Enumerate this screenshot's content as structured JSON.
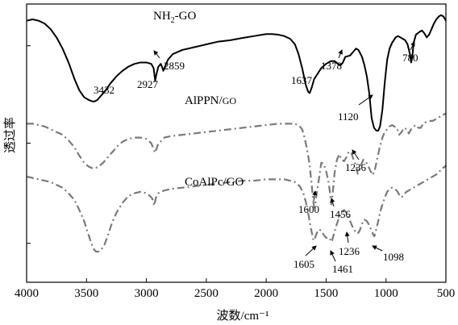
{
  "chart_data": {
    "type": "line",
    "xlabel": "波数/cm⁻¹",
    "ylabel": "透过率",
    "xlim": [
      4000,
      500
    ],
    "x_reversed": true,
    "x_ticks": [
      4000,
      3500,
      3000,
      2500,
      2000,
      1500,
      1000,
      500
    ],
    "grid": false,
    "series": [
      {
        "name": "NH₂-GO",
        "color": "#000000",
        "dash": "solid",
        "x": [
          4000,
          3950,
          3900,
          3850,
          3800,
          3750,
          3700,
          3650,
          3600,
          3560,
          3520,
          3480,
          3450,
          3432,
          3410,
          3380,
          3340,
          3300,
          3250,
          3200,
          3150,
          3100,
          3050,
          3000,
          2960,
          2940,
          2927,
          2915,
          2900,
          2880,
          2870,
          2859,
          2845,
          2820,
          2780,
          2700,
          2600,
          2500,
          2400,
          2300,
          2200,
          2100,
          2000,
          1950,
          1900,
          1850,
          1800,
          1760,
          1730,
          1700,
          1670,
          1650,
          1637,
          1620,
          1600,
          1570,
          1540,
          1500,
          1460,
          1430,
          1400,
          1378,
          1360,
          1340,
          1300,
          1270,
          1250,
          1230,
          1200,
          1180,
          1160,
          1140,
          1120,
          1100,
          1080,
          1065,
          1050,
          1030,
          1010,
          990,
          970,
          950,
          920,
          900,
          880,
          860,
          840,
          820,
          800,
          790,
          780,
          770,
          750,
          720,
          700,
          680,
          660,
          640,
          620,
          600,
          580,
          560,
          540,
          520,
          500
        ],
        "y": [
          94,
          94.5,
          94,
          93,
          91,
          88,
          84,
          79,
          73,
          69,
          66.5,
          65.5,
          65,
          65,
          65.5,
          67,
          69,
          71.5,
          74,
          76,
          77.5,
          78.5,
          79,
          79,
          78.5,
          77,
          72.5,
          75,
          77.5,
          78.5,
          77.5,
          76,
          77.5,
          80,
          82,
          83.5,
          84.5,
          85.5,
          86.5,
          87,
          87.8,
          88.5,
          89.2,
          89.2,
          89,
          88.5,
          87.5,
          85.5,
          82,
          77,
          71,
          68.5,
          68,
          70,
          73,
          75,
          77,
          78.5,
          79.5,
          79.5,
          78.5,
          78,
          79,
          81,
          81.5,
          83,
          84,
          83.5,
          81,
          78,
          74,
          68,
          59,
          55.5,
          54.5,
          54.5,
          56,
          62,
          72,
          80,
          84,
          86,
          88,
          88.5,
          88,
          87.5,
          87,
          85.5,
          82,
          79,
          81,
          86,
          89,
          90,
          90.5,
          89.5,
          88,
          89,
          91,
          93,
          94.5,
          95.5,
          96,
          95.5,
          94
        ]
      },
      {
        "name": "AlPPN/GO",
        "color": "#7a7a7a",
        "dash": "dashdot",
        "x": [
          4000,
          3950,
          3900,
          3850,
          3800,
          3750,
          3700,
          3650,
          3600,
          3560,
          3520,
          3480,
          3450,
          3430,
          3400,
          3360,
          3320,
          3280,
          3240,
          3200,
          3150,
          3100,
          3050,
          3000,
          2960,
          2940,
          2930,
          2915,
          2900,
          2870,
          2850,
          2800,
          2700,
          2600,
          2500,
          2400,
          2300,
          2200,
          2100,
          2000,
          1900,
          1850,
          1800,
          1780,
          1760,
          1740,
          1720,
          1700,
          1680,
          1660,
          1640,
          1620,
          1610,
          1600,
          1590,
          1575,
          1560,
          1540,
          1520,
          1500,
          1480,
          1470,
          1460,
          1456,
          1445,
          1430,
          1410,
          1390,
          1370,
          1350,
          1330,
          1310,
          1290,
          1270,
          1250,
          1236,
          1225,
          1210,
          1190,
          1170,
          1150,
          1130,
          1110,
          1090,
          1070,
          1050,
          1030,
          1010,
          990,
          970,
          950,
          930,
          910,
          890,
          870,
          850,
          830,
          810,
          790,
          770,
          750,
          730,
          710,
          690,
          670,
          650,
          630,
          610,
          590,
          570,
          550,
          530,
          510,
          500
        ],
        "y": [
          57,
          57,
          56.5,
          56,
          55,
          54,
          53,
          51,
          48.5,
          45.5,
          43,
          41.5,
          41,
          41,
          41.5,
          43,
          45,
          47,
          49,
          50.5,
          51.5,
          52,
          52,
          51.5,
          50,
          48,
          46.5,
          48,
          50,
          51,
          52,
          52.5,
          53,
          53.5,
          54,
          54.5,
          55,
          55.5,
          56,
          56.5,
          57,
          57,
          57,
          57,
          57,
          56.5,
          56,
          55,
          52,
          48,
          43,
          35,
          30,
          27,
          28.5,
          33,
          37,
          43,
          42.5,
          40,
          36,
          33,
          29,
          28,
          32,
          39,
          44,
          46,
          44,
          43.5,
          45,
          47,
          46.5,
          44,
          42,
          39,
          40.5,
          42,
          44,
          43.5,
          42,
          40,
          38.5,
          41,
          45,
          49,
          52,
          54,
          55,
          56,
          56.5,
          56,
          55.5,
          53,
          54,
          55.5,
          55,
          53.5,
          55,
          56,
          56.5,
          55.5,
          55.5,
          57,
          57.5,
          57.5,
          58,
          58,
          58.5,
          59,
          59.5,
          60,
          60.5,
          60.5
        ]
      },
      {
        "name": "CoAlPc/GO",
        "color": "#7a7a7a",
        "dash": "dashdot",
        "x": [
          4000,
          3950,
          3900,
          3850,
          3800,
          3750,
          3700,
          3650,
          3600,
          3560,
          3520,
          3490,
          3460,
          3440,
          3420,
          3400,
          3380,
          3350,
          3320,
          3290,
          3250,
          3200,
          3150,
          3100,
          3050,
          3000,
          2970,
          2950,
          2935,
          2920,
          2900,
          2880,
          2850,
          2800,
          2700,
          2600,
          2500,
          2400,
          2300,
          2200,
          2100,
          2000,
          1950,
          1900,
          1850,
          1800,
          1760,
          1720,
          1690,
          1670,
          1650,
          1630,
          1615,
          1605,
          1595,
          1580,
          1560,
          1540,
          1520,
          1500,
          1485,
          1470,
          1461,
          1450,
          1430,
          1410,
          1390,
          1370,
          1350,
          1330,
          1310,
          1290,
          1270,
          1250,
          1236,
          1220,
          1200,
          1180,
          1160,
          1140,
          1120,
          1105,
          1098,
          1090,
          1070,
          1050,
          1030,
          1010,
          990,
          970,
          950,
          930,
          910,
          890,
          870,
          850,
          830,
          810,
          790,
          770,
          750,
          730,
          710,
          690,
          670,
          650,
          630,
          610,
          590,
          570,
          550,
          530,
          510,
          500
        ],
        "y": [
          38,
          37.5,
          37,
          36.5,
          36,
          35,
          34,
          32,
          29.5,
          26,
          22,
          18,
          14,
          12,
          11,
          11,
          11.5,
          13.5,
          17,
          21,
          25,
          28.5,
          31,
          32,
          32.5,
          32,
          31,
          30,
          27.5,
          30.5,
          32,
          32.5,
          33,
          33.5,
          34,
          34.5,
          35,
          35.5,
          36,
          36.5,
          36.5,
          37,
          37,
          37,
          37,
          36.5,
          36,
          34.5,
          32,
          29,
          25,
          20,
          17,
          15,
          15.5,
          17.5,
          19,
          18.5,
          17,
          16,
          16,
          16,
          14.5,
          15,
          18,
          21,
          23.5,
          25,
          26,
          25,
          23,
          21,
          19,
          18,
          17.5,
          18.5,
          21,
          22.5,
          22,
          20.5,
          18.5,
          17,
          16.5,
          17.5,
          21,
          25,
          28,
          30.5,
          32.5,
          33.5,
          34,
          33.5,
          33,
          31.5,
          30.5,
          31.5,
          32.5,
          33,
          33.5,
          34,
          34.5,
          35,
          35.5,
          36,
          36.5,
          37,
          37.5,
          38,
          38.5,
          39,
          40,
          41,
          41.5,
          42
        ]
      }
    ],
    "series_labels": [
      {
        "text_main": "NH",
        "text_sub": "2",
        "text_rest": "-GO"
      },
      {
        "text_main": "AlPPN/",
        "text_small": "GO"
      },
      {
        "text_main": "CoAlPc/GO"
      }
    ],
    "annotations": [
      {
        "label": "3432"
      },
      {
        "label": "2927"
      },
      {
        "label": "2859"
      },
      {
        "label": "1637"
      },
      {
        "label": "1378"
      },
      {
        "label": "1120"
      },
      {
        "label": "780"
      },
      {
        "label": "1236"
      },
      {
        "label": "1600"
      },
      {
        "label": "1456"
      },
      {
        "label": "1605"
      },
      {
        "label": "1236"
      },
      {
        "label": "1461"
      },
      {
        "label": "1098"
      }
    ]
  }
}
